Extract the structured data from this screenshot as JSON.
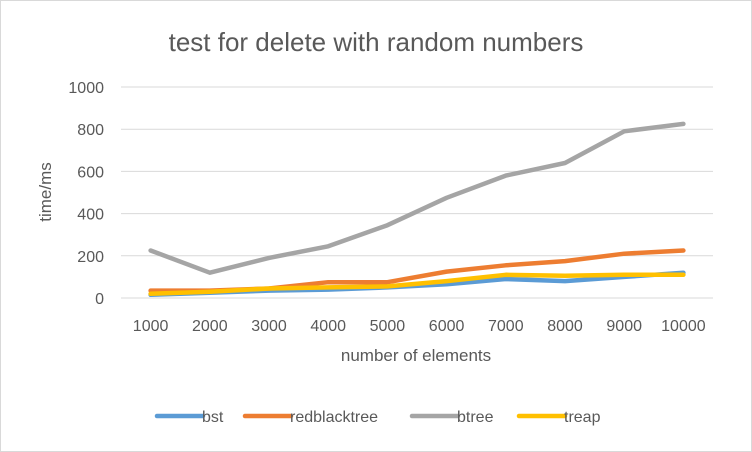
{
  "chart_data": {
    "type": "line",
    "title": "test for delete with random numbers",
    "xlabel": "number of elements",
    "ylabel": "time/ms",
    "ylim": [
      0,
      1000
    ],
    "yticks": [
      0,
      200,
      400,
      600,
      800,
      1000
    ],
    "categories": [
      "1000",
      "2000",
      "3000",
      "4000",
      "5000",
      "6000",
      "7000",
      "8000",
      "9000",
      "10000"
    ],
    "grid": true,
    "legend_position": "bottom",
    "series": [
      {
        "name": "bst",
        "color": "#5b9bd5",
        "values": [
          15,
          25,
          35,
          40,
          50,
          65,
          90,
          80,
          100,
          120
        ]
      },
      {
        "name": "redblacktree",
        "color": "#ed7d31",
        "values": [
          35,
          35,
          45,
          75,
          75,
          125,
          155,
          175,
          210,
          225
        ]
      },
      {
        "name": "btree",
        "color": "#a5a5a5",
        "values": [
          225,
          120,
          190,
          245,
          345,
          475,
          580,
          640,
          790,
          825
        ]
      },
      {
        "name": "treap",
        "color": "#ffc000",
        "values": [
          20,
          30,
          45,
          50,
          55,
          80,
          110,
          105,
          110,
          110
        ]
      }
    ]
  }
}
